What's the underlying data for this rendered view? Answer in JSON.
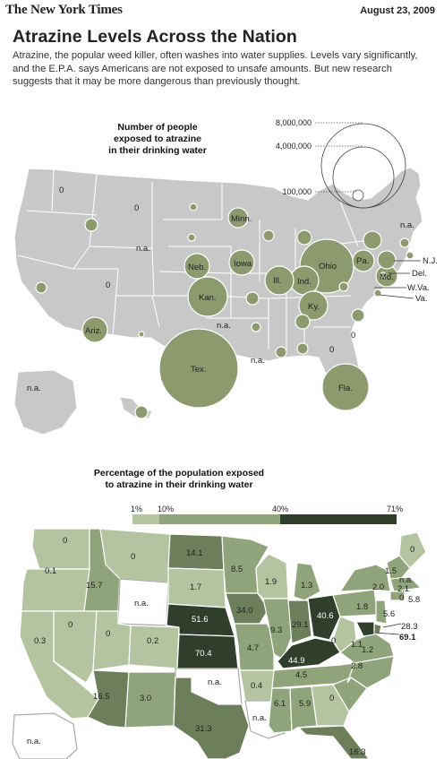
{
  "masthead": "The New York Times",
  "date": "August 23, 2009",
  "headline": "Atrazine Levels Across the Nation",
  "intro": "Atrazine, the popular weed killer, often washes into water supplies. Levels vary significantly, and the E.P.A. says Americans are not exposed to unsafe amounts. But new research suggests that it may be more dangerous than previously thought.",
  "map1": {
    "title_line1": "Number of people",
    "title_line2": "exposed to atrazine",
    "title_line3": "in their drinking water",
    "legend": [
      "8,000,000",
      "4,000,000",
      "100,000"
    ],
    "labels": {
      "minn": "Minn.",
      "neb": "Neb.",
      "iowa": "Iowa",
      "kan": "Kan.",
      "ohio": "Ohio",
      "ill": "Ill.",
      "ind": "Ind.",
      "ky": "Ky.",
      "pa": "Pa.",
      "md": "Md.",
      "nj": "N.J.",
      "del": "Del.",
      "wva": "W.Va.",
      "va": "Va.",
      "ariz": "Ariz.",
      "tex": "Tex.",
      "fla": "Fla.",
      "zero_wa": "0",
      "zero_mt": "0",
      "zero_nv": "0",
      "zero_ga": "0",
      "zero_sc": "0",
      "na_wy": "n.a.",
      "na_ok": "n.a.",
      "na_la": "n.a.",
      "na_ne_corner": "n.a.",
      "na_ak": "n.a."
    }
  },
  "map2": {
    "title_line1": "Percentage of the population exposed",
    "title_line2": "to atrazine in their drinking water",
    "legend_ticks": [
      "1%",
      "10%",
      "40%",
      "71%"
    ],
    "colors": {
      "c1": "#b5c4a0",
      "c2": "#8fa47a",
      "c3": "#6c7f5a",
      "c4": "#2f3f2c"
    },
    "values": {
      "wa": "0",
      "or": "0.1",
      "ca": "0.3",
      "id": "15.7",
      "nv": "0",
      "mt": "0",
      "wy": "n.a.",
      "ut": "0",
      "co": "0.2",
      "az": "16.5",
      "nm": "3.0",
      "nd": "14.1",
      "sd": "1.7",
      "ne": "51.6",
      "ks": "70.4",
      "ok": "n.a.",
      "tx": "31.3",
      "mn": "8.5",
      "ia": "34.0",
      "mo": "4.7",
      "ar": "0.4",
      "la": "n.a.",
      "wi": "1.9",
      "il": "9.3",
      "mi": "1.3",
      "in": "29.1",
      "oh": "40.6",
      "ky": "44.9",
      "tn": "4.5",
      "ms": "6.1",
      "al": "5.9",
      "ga": "0",
      "fl": "16.3",
      "sc": "2.8",
      "nc": "1.2",
      "va": "1.1",
      "wv": "0",
      "pa": "1.8",
      "ny": "2.0",
      "me": "0",
      "vt": "1.5",
      "ct": "2.1",
      "ma": "5.8",
      "ri": "0",
      "nj": "5.6",
      "de": "28.3",
      "md": "69.1",
      "ne_na": "n.a.",
      "ak": "n.a."
    }
  }
}
